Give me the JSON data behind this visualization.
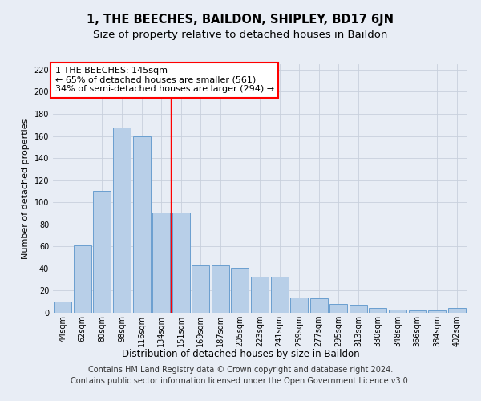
{
  "title": "1, THE BEECHES, BAILDON, SHIPLEY, BD17 6JN",
  "subtitle": "Size of property relative to detached houses in Baildon",
  "xlabel": "Distribution of detached houses by size in Baildon",
  "ylabel": "Number of detached properties",
  "categories": [
    "44sqm",
    "62sqm",
    "80sqm",
    "98sqm",
    "116sqm",
    "134sqm",
    "151sqm",
    "169sqm",
    "187sqm",
    "205sqm",
    "223sqm",
    "241sqm",
    "259sqm",
    "277sqm",
    "295sqm",
    "313sqm",
    "330sqm",
    "348sqm",
    "366sqm",
    "384sqm",
    "402sqm"
  ],
  "values": [
    10,
    61,
    110,
    168,
    160,
    91,
    91,
    43,
    43,
    41,
    33,
    33,
    14,
    13,
    8,
    7,
    4,
    3,
    2,
    2,
    4
  ],
  "bar_color": "#b8cfe8",
  "bar_edge_color": "#6a9fd0",
  "background_color": "#e8edf5",
  "vline_x": 5.5,
  "vline_color": "red",
  "annotation_lines": [
    "1 THE BEECHES: 145sqm",
    "← 65% of detached houses are smaller (561)",
    "34% of semi-detached houses are larger (294) →"
  ],
  "annotation_box_color": "white",
  "annotation_box_edge_color": "red",
  "ylim": [
    0,
    225
  ],
  "yticks": [
    0,
    20,
    40,
    60,
    80,
    100,
    120,
    140,
    160,
    180,
    200,
    220
  ],
  "footer_line1": "Contains HM Land Registry data © Crown copyright and database right 2024.",
  "footer_line2": "Contains public sector information licensed under the Open Government Licence v3.0.",
  "grid_color": "#c8d0dc",
  "title_fontsize": 10.5,
  "subtitle_fontsize": 9.5,
  "xlabel_fontsize": 8.5,
  "ylabel_fontsize": 8,
  "tick_fontsize": 7,
  "annotation_fontsize": 8,
  "footer_fontsize": 7
}
